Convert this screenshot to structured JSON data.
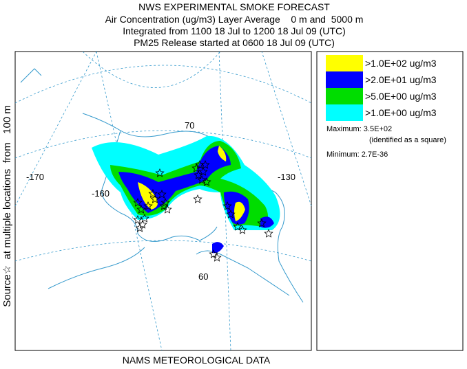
{
  "header": {
    "lines": [
      "NWS EXPERIMENTAL SMOKE FORECAST",
      "Air Concentration (ug/m3) Layer Average    0 m and  5000 m",
      "Integrated from 1100 18 Jul to 1200 18 Jul 09 (UTC)",
      "PM25 Release started at 0600 18 Jul 09 (UTC)"
    ]
  },
  "side_label": "Source☆  at multiple locations  from   100 m",
  "footer": "NAMS METEOROLOGICAL DATA",
  "map": {
    "grid_labels": [
      "-170",
      "-160",
      "-130",
      "70",
      "60"
    ]
  },
  "legend": {
    "entries": [
      {
        "label": ">1.0E+02 ug/m3",
        "color": "#ffff00"
      },
      {
        "label": ">2.0E+01 ug/m3",
        "color": "#0000ff"
      },
      {
        "label": ">5.0E+00 ug/m3",
        "color": "#00dd00"
      },
      {
        "label": ">1.0E+00 ug/m3",
        "color": "#00ffff"
      }
    ],
    "maximum": "Maximum: 3.5E+02",
    "maximum_note": "(identified as a square)",
    "minimum": "Minimum: 2.7E-36"
  }
}
